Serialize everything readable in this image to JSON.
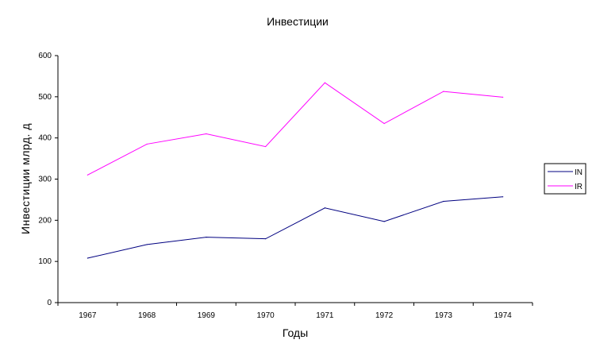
{
  "chart_data": {
    "type": "line",
    "title": "Инвестиции",
    "xlabel": "Годы",
    "ylabel": "Инвестиции млрд. д",
    "categories": [
      "1967",
      "1968",
      "1969",
      "1970",
      "1971",
      "1972",
      "1973",
      "1974"
    ],
    "ylim": [
      0,
      600
    ],
    "yticks": [
      0,
      100,
      200,
      300,
      400,
      500,
      600
    ],
    "grid": false,
    "legend_position": "right",
    "series": [
      {
        "name": "IN",
        "color": "#000080",
        "values": [
          108,
          141,
          159,
          155,
          230,
          197,
          246,
          257
        ]
      },
      {
        "name": "IR",
        "color": "#ff00ff",
        "values": [
          310,
          385,
          410,
          379,
          534,
          435,
          513,
          499
        ]
      }
    ]
  }
}
